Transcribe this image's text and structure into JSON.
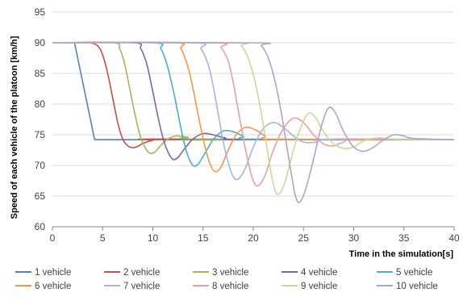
{
  "chart_data": {
    "type": "line",
    "xlabel": "Time in the simulation[s]",
    "ylabel": "Speed of each vehicle of the platoon [km/h]",
    "xlim": [
      0,
      40
    ],
    "ylim": [
      60,
      95
    ],
    "xticks": [
      0,
      5,
      10,
      15,
      20,
      25,
      30,
      35,
      40
    ],
    "yticks": [
      60,
      65,
      70,
      75,
      80,
      85,
      90,
      95
    ],
    "grid": "horizontal",
    "legend_position": "bottom",
    "series": [
      {
        "name": "1 vehicle",
        "color": "#4f81bd",
        "points": [
          [
            0,
            90
          ],
          [
            2.2,
            90
          ],
          [
            4.2,
            74.2
          ],
          [
            40,
            74.2
          ]
        ]
      },
      {
        "name": "2 vehicle",
        "color": "#c0504d",
        "points": [
          [
            0,
            90
          ],
          [
            3.5,
            90
          ],
          [
            4.5,
            89.5
          ],
          [
            5,
            88
          ],
          [
            5.5,
            85
          ],
          [
            6,
            81
          ],
          [
            6.5,
            77
          ],
          [
            7,
            74.3
          ],
          [
            7.5,
            73.2
          ],
          [
            8,
            72.9
          ],
          [
            8.5,
            73.1
          ],
          [
            9,
            73.6
          ],
          [
            10,
            74.1
          ],
          [
            11,
            74.3
          ],
          [
            40,
            74.2
          ]
        ]
      },
      {
        "name": "3 vehicle",
        "color": "#9bbb59",
        "points": [
          [
            0,
            90
          ],
          [
            6,
            90
          ],
          [
            6.7,
            89
          ],
          [
            7.2,
            86.5
          ],
          [
            7.7,
            82.5
          ],
          [
            8.2,
            78.5
          ],
          [
            8.7,
            75
          ],
          [
            9.2,
            73
          ],
          [
            9.7,
            72
          ],
          [
            10.2,
            72.2
          ],
          [
            10.8,
            73.3
          ],
          [
            11.5,
            74.3
          ],
          [
            12.3,
            74.8
          ],
          [
            13.5,
            74.6
          ],
          [
            15,
            74.3
          ],
          [
            40,
            74.2
          ]
        ]
      },
      {
        "name": "4 vehicle",
        "color": "#8064a2",
        "points": [
          [
            0,
            90
          ],
          [
            8,
            90
          ],
          [
            8.8,
            89
          ],
          [
            9.4,
            86.5
          ],
          [
            10,
            82
          ],
          [
            10.5,
            78
          ],
          [
            11,
            74.5
          ],
          [
            11.5,
            72.2
          ],
          [
            12,
            71
          ],
          [
            12.5,
            71.3
          ],
          [
            13.2,
            72.8
          ],
          [
            14,
            74.3
          ],
          [
            15,
            75.2
          ],
          [
            16,
            75
          ],
          [
            17.2,
            74.5
          ],
          [
            19,
            74.2
          ],
          [
            40,
            74.2
          ]
        ]
      },
      {
        "name": "5 vehicle",
        "color": "#4bacc6",
        "points": [
          [
            0,
            90
          ],
          [
            10,
            90
          ],
          [
            10.8,
            89
          ],
          [
            11.4,
            86.5
          ],
          [
            12,
            82.5
          ],
          [
            12.5,
            78.5
          ],
          [
            13,
            74.5
          ],
          [
            13.5,
            71.5
          ],
          [
            14,
            70
          ],
          [
            14.5,
            70.2
          ],
          [
            15.2,
            72
          ],
          [
            16,
            74.2
          ],
          [
            17,
            75.6
          ],
          [
            18,
            75.5
          ],
          [
            19,
            74.8
          ],
          [
            20.5,
            74.2
          ],
          [
            40,
            74.2
          ]
        ]
      },
      {
        "name": "6 vehicle",
        "color": "#f79646",
        "points": [
          [
            0,
            90
          ],
          [
            12,
            90
          ],
          [
            12.8,
            89
          ],
          [
            13.5,
            86
          ],
          [
            14,
            82.5
          ],
          [
            14.6,
            77.5
          ],
          [
            15.2,
            73
          ],
          [
            15.7,
            70.2
          ],
          [
            16.2,
            69
          ],
          [
            16.8,
            69.8
          ],
          [
            17.5,
            72.5
          ],
          [
            18.3,
            75
          ],
          [
            19.2,
            76.2
          ],
          [
            20.2,
            75.8
          ],
          [
            21.2,
            74.8
          ],
          [
            22.5,
            74.2
          ],
          [
            40,
            74.2
          ]
        ]
      },
      {
        "name": "7 vehicle",
        "color": "#a5b5dc",
        "points": [
          [
            0,
            90
          ],
          [
            14,
            90
          ],
          [
            14.8,
            89
          ],
          [
            15.5,
            86.5
          ],
          [
            16,
            83
          ],
          [
            16.5,
            78.5
          ],
          [
            17,
            74
          ],
          [
            17.5,
            70.5
          ],
          [
            18,
            68.2
          ],
          [
            18.5,
            67.8
          ],
          [
            19.2,
            69.5
          ],
          [
            20,
            73
          ],
          [
            21,
            76
          ],
          [
            22,
            77
          ],
          [
            23,
            76.2
          ],
          [
            24,
            74.8
          ],
          [
            25,
            73.8
          ],
          [
            26.2,
            73.8
          ],
          [
            28,
            74.3
          ],
          [
            40,
            74.2
          ]
        ]
      },
      {
        "name": "8 vehicle",
        "color": "#e8a0a0",
        "points": [
          [
            0,
            90
          ],
          [
            16,
            90
          ],
          [
            16.8,
            89.2
          ],
          [
            17.5,
            87
          ],
          [
            18,
            83.5
          ],
          [
            18.5,
            79
          ],
          [
            19,
            74.5
          ],
          [
            19.5,
            70.5
          ],
          [
            20,
            67.5
          ],
          [
            20.5,
            66.7
          ],
          [
            21.2,
            68.5
          ],
          [
            22,
            72.5
          ],
          [
            23,
            76
          ],
          [
            24,
            77.7
          ],
          [
            25,
            77
          ],
          [
            26,
            75
          ],
          [
            27,
            73.5
          ],
          [
            28,
            73.2
          ],
          [
            29,
            73.8
          ],
          [
            30.5,
            74.3
          ],
          [
            40,
            74.2
          ]
        ]
      },
      {
        "name": "9 vehicle",
        "color": "#c6d99a",
        "points": [
          [
            0,
            90
          ],
          [
            18,
            90
          ],
          [
            18.8,
            89.5
          ],
          [
            19.5,
            87.5
          ],
          [
            20.2,
            83.5
          ],
          [
            20.8,
            78.5
          ],
          [
            21.3,
            73.5
          ],
          [
            21.8,
            68.5
          ],
          [
            22.2,
            65.8
          ],
          [
            22.6,
            65.4
          ],
          [
            23.2,
            67.5
          ],
          [
            24,
            72.5
          ],
          [
            24.8,
            76.5
          ],
          [
            25.5,
            78.5
          ],
          [
            26.2,
            77.8
          ],
          [
            27,
            75.5
          ],
          [
            28,
            73.5
          ],
          [
            29,
            72.8
          ],
          [
            30,
            73
          ],
          [
            31,
            74
          ],
          [
            32.5,
            74.5
          ],
          [
            34,
            74.3
          ],
          [
            40,
            74.2
          ]
        ]
      },
      {
        "name": "10 vehicle",
        "color": "#b3a2c7",
        "points": [
          [
            0,
            90
          ],
          [
            20,
            90
          ],
          [
            20.8,
            89.5
          ],
          [
            21.5,
            87.5
          ],
          [
            22.2,
            83.5
          ],
          [
            22.8,
            78.5
          ],
          [
            23.3,
            73.5
          ],
          [
            23.8,
            68.5
          ],
          [
            24.2,
            65
          ],
          [
            24.6,
            64
          ],
          [
            25.2,
            66
          ],
          [
            26,
            71
          ],
          [
            26.8,
            76.5
          ],
          [
            27.5,
            79.4
          ],
          [
            28.2,
            78.5
          ],
          [
            29,
            75.5
          ],
          [
            30,
            73
          ],
          [
            31,
            72.3
          ],
          [
            32,
            73
          ],
          [
            33,
            74.2
          ],
          [
            34,
            75
          ],
          [
            35,
            74.8
          ],
          [
            36,
            74.4
          ],
          [
            40,
            74.2
          ]
        ]
      }
    ]
  }
}
